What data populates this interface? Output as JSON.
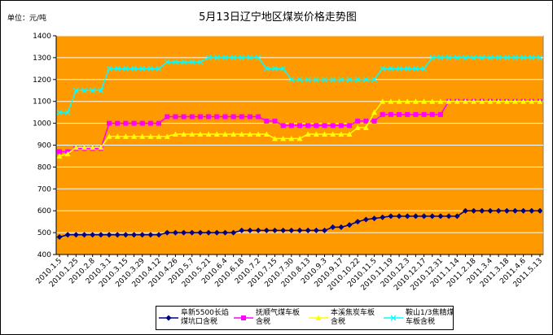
{
  "chart_data": {
    "type": "line",
    "title": "5月13日辽宁地区煤炭价格走势图",
    "y_label": "单位：元/吨",
    "categories": [
      "2010.1.5",
      null,
      "2010.1.25",
      null,
      "2010.2.8",
      null,
      "2010.3.1",
      null,
      "2010.3.15",
      null,
      "2010.3.29",
      null,
      "2010.4.12",
      null,
      "2010.4.26",
      null,
      "2010.5.7",
      null,
      "2010.5.21",
      null,
      "2010.6.4",
      null,
      "2010.6.18",
      null,
      "2010.7.2",
      null,
      "2010.7.15",
      null,
      "2010.7.30",
      null,
      "2010.8.13",
      null,
      "2010.9.3",
      null,
      "2010.9.17",
      null,
      "2010.10.22",
      null,
      "2010.11.5",
      null,
      "2010.11.19",
      null,
      "2010.12.3",
      null,
      "2010.12.17",
      null,
      "2010.12.31",
      null,
      "2011.1.14",
      null,
      "2011.2.18",
      null,
      "2011.3.4",
      null,
      "2011.3.18",
      null,
      "2011.4.6",
      null,
      "2011.5.13"
    ],
    "series": [
      {
        "name": "阜新5500长焰煤坑口含税",
        "color": "#000080",
        "marker": "diamond",
        "values": [
          480,
          490,
          490,
          490,
          490,
          490,
          490,
          490,
          490,
          490,
          490,
          490,
          490,
          500,
          500,
          500,
          500,
          500,
          500,
          500,
          500,
          500,
          510,
          510,
          510,
          510,
          510,
          510,
          510,
          510,
          510,
          510,
          510,
          525,
          525,
          535,
          550,
          560,
          565,
          570,
          575,
          575,
          575,
          575,
          575,
          575,
          575,
          575,
          575,
          600,
          600,
          600,
          600,
          600,
          600,
          600,
          600,
          600,
          600
        ]
      },
      {
        "name": "抚顺气煤车板含税",
        "color": "#FF00FF",
        "marker": "square",
        "values": [
          870,
          870,
          885,
          885,
          885,
          885,
          1000,
          1000,
          1000,
          1000,
          1000,
          1000,
          1000,
          1030,
          1030,
          1030,
          1030,
          1030,
          1030,
          1030,
          1030,
          1030,
          1030,
          1030,
          1030,
          1010,
          1010,
          990,
          990,
          990,
          990,
          990,
          990,
          990,
          990,
          990,
          1010,
          1010,
          1010,
          1040,
          1040,
          1040,
          1040,
          1040,
          1040,
          1040,
          1040,
          1100,
          1100,
          1100,
          1100,
          1100,
          1100,
          1100,
          1100,
          1100,
          1100,
          1100,
          1100
        ]
      },
      {
        "name": "本溪焦炭车板含税",
        "color": "#FFFF00",
        "marker": "triangle",
        "values": [
          850,
          860,
          890,
          890,
          890,
          890,
          940,
          940,
          940,
          940,
          940,
          940,
          940,
          940,
          950,
          950,
          950,
          950,
          950,
          950,
          950,
          950,
          950,
          950,
          950,
          950,
          930,
          930,
          930,
          930,
          950,
          950,
          950,
          950,
          950,
          950,
          980,
          980,
          1050,
          1100,
          1100,
          1100,
          1100,
          1100,
          1100,
          1100,
          1100,
          1100,
          1100,
          1100,
          1100,
          1100,
          1100,
          1100,
          1100,
          1100,
          1100,
          1100,
          1100
        ]
      },
      {
        "name": "鞍山1/3焦精煤车板含税",
        "color": "#00FFFF",
        "marker": "x",
        "values": [
          1050,
          1050,
          1150,
          1150,
          1150,
          1150,
          1250,
          1250,
          1250,
          1250,
          1250,
          1250,
          1250,
          1280,
          1280,
          1280,
          1280,
          1280,
          1300,
          1300,
          1300,
          1300,
          1300,
          1300,
          1300,
          1250,
          1250,
          1250,
          1200,
          1200,
          1200,
          1200,
          1200,
          1200,
          1200,
          1200,
          1200,
          1200,
          1200,
          1250,
          1250,
          1250,
          1250,
          1250,
          1250,
          1300,
          1300,
          1300,
          1300,
          1300,
          1300,
          1300,
          1300,
          1300,
          1300,
          1300,
          1300,
          1300,
          1300
        ]
      }
    ],
    "ylim": [
      400,
      1400
    ],
    "yticks": [
      400,
      500,
      600,
      700,
      800,
      900,
      1000,
      1100,
      1200,
      1300,
      1400
    ],
    "grid": true,
    "plot_color": "#FF9900",
    "legend": "bottom"
  }
}
